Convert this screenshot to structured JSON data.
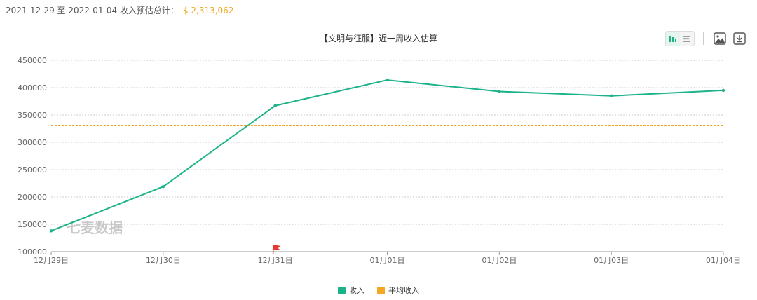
{
  "header": {
    "range_text": "2021-12-29 至 2022-01-04 收入预估总计：",
    "total": "$ 2,313,062"
  },
  "toolbar": {
    "icons": [
      "bar-chart-icon",
      "list-icon",
      "image-icon",
      "download-icon"
    ]
  },
  "watermark": "七麦数据",
  "colors": {
    "income": "#1db38a",
    "average": "#f5a623",
    "flag": "#e53935",
    "grid": "#cccccc",
    "axis": "#999999"
  },
  "chart_data": {
    "type": "line",
    "title": "【文明与征服】近一周收入估算",
    "categories": [
      "12月29日",
      "12月30日",
      "12月31日",
      "01月01日",
      "01月02日",
      "01月03日",
      "01月04日"
    ],
    "series": [
      {
        "name": "收入",
        "values": [
          138000,
          219000,
          367000,
          414000,
          393000,
          385000,
          395000
        ]
      },
      {
        "name": "平均收入",
        "values": [
          330437,
          330437,
          330437,
          330437,
          330437,
          330437,
          330437
        ]
      }
    ],
    "y_ticks": [
      "100000",
      "150000",
      "200000",
      "250000",
      "300000",
      "350000",
      "400000",
      "450000"
    ],
    "ylim": [
      100000,
      450000
    ],
    "grid": true,
    "legend": "bottom-center",
    "flag_marker_category": "12月31日"
  }
}
